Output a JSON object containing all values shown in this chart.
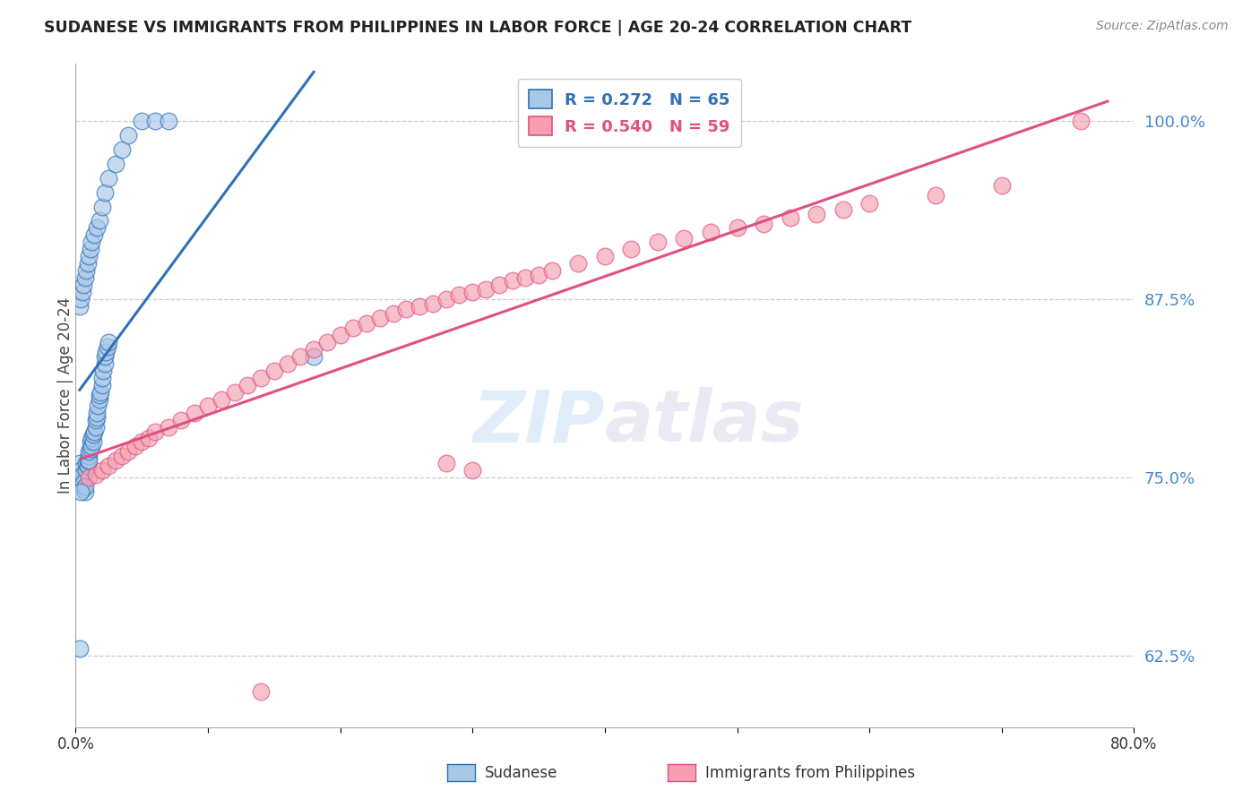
{
  "title": "SUDANESE VS IMMIGRANTS FROM PHILIPPINES IN LABOR FORCE | AGE 20-24 CORRELATION CHART",
  "source": "Source: ZipAtlas.com",
  "ylabel": "In Labor Force | Age 20-24",
  "xmin": 0.0,
  "xmax": 0.8,
  "ymin": 0.575,
  "ymax": 1.04,
  "yticks": [
    0.625,
    0.75,
    0.875,
    1.0
  ],
  "ytick_labels": [
    "62.5%",
    "75.0%",
    "87.5%",
    "100.0%"
  ],
  "xticks": [
    0.0,
    0.1,
    0.2,
    0.3,
    0.4,
    0.5,
    0.6,
    0.7,
    0.8
  ],
  "xtick_labels": [
    "0.0%",
    "",
    "",
    "",
    "",
    "",
    "",
    "",
    "80.0%"
  ],
  "blue_color": "#a8c8e8",
  "pink_color": "#f4a0b0",
  "blue_line_color": "#3070b8",
  "pink_line_color": "#e05080",
  "R_blue": 0.272,
  "N_blue": 65,
  "R_pink": 0.54,
  "N_pink": 59,
  "legend_label_blue": "Sudanese",
  "legend_label_pink": "Immigrants from Philippines",
  "watermark_zip": "ZIP",
  "watermark_atlas": "atlas",
  "blue_x": [
    0.003,
    0.004,
    0.004,
    0.005,
    0.005,
    0.005,
    0.006,
    0.006,
    0.007,
    0.007,
    0.008,
    0.008,
    0.009,
    0.009,
    0.01,
    0.01,
    0.01,
    0.011,
    0.011,
    0.012,
    0.012,
    0.013,
    0.013,
    0.014,
    0.015,
    0.015,
    0.016,
    0.016,
    0.017,
    0.018,
    0.018,
    0.019,
    0.02,
    0.02,
    0.021,
    0.022,
    0.022,
    0.023,
    0.024,
    0.025,
    0.003,
    0.004,
    0.005,
    0.006,
    0.007,
    0.008,
    0.009,
    0.01,
    0.011,
    0.012,
    0.014,
    0.016,
    0.018,
    0.02,
    0.022,
    0.025,
    0.03,
    0.035,
    0.04,
    0.05,
    0.06,
    0.07,
    0.18,
    0.003,
    0.004
  ],
  "blue_y": [
    0.76,
    0.75,
    0.755,
    0.745,
    0.748,
    0.752,
    0.742,
    0.746,
    0.74,
    0.744,
    0.755,
    0.76,
    0.758,
    0.762,
    0.765,
    0.762,
    0.768,
    0.77,
    0.775,
    0.772,
    0.778,
    0.775,
    0.78,
    0.782,
    0.785,
    0.79,
    0.792,
    0.795,
    0.8,
    0.805,
    0.808,
    0.81,
    0.815,
    0.82,
    0.825,
    0.83,
    0.835,
    0.838,
    0.842,
    0.845,
    0.87,
    0.875,
    0.88,
    0.885,
    0.89,
    0.895,
    0.9,
    0.905,
    0.91,
    0.915,
    0.92,
    0.925,
    0.93,
    0.94,
    0.95,
    0.96,
    0.97,
    0.98,
    0.99,
    1.0,
    1.0,
    1.0,
    0.835,
    0.63,
    0.74
  ],
  "pink_x": [
    0.01,
    0.015,
    0.02,
    0.025,
    0.03,
    0.035,
    0.04,
    0.045,
    0.05,
    0.055,
    0.06,
    0.07,
    0.08,
    0.09,
    0.1,
    0.11,
    0.12,
    0.13,
    0.14,
    0.15,
    0.16,
    0.17,
    0.18,
    0.19,
    0.2,
    0.21,
    0.22,
    0.23,
    0.24,
    0.25,
    0.26,
    0.27,
    0.28,
    0.29,
    0.3,
    0.31,
    0.32,
    0.33,
    0.34,
    0.35,
    0.36,
    0.38,
    0.4,
    0.42,
    0.44,
    0.46,
    0.48,
    0.5,
    0.52,
    0.54,
    0.56,
    0.58,
    0.6,
    0.65,
    0.7,
    0.28,
    0.3,
    0.76,
    0.14
  ],
  "pink_y": [
    0.75,
    0.752,
    0.755,
    0.758,
    0.762,
    0.765,
    0.768,
    0.772,
    0.775,
    0.778,
    0.782,
    0.785,
    0.79,
    0.795,
    0.8,
    0.805,
    0.81,
    0.815,
    0.82,
    0.825,
    0.83,
    0.835,
    0.84,
    0.845,
    0.85,
    0.855,
    0.858,
    0.862,
    0.865,
    0.868,
    0.87,
    0.872,
    0.875,
    0.878,
    0.88,
    0.882,
    0.885,
    0.888,
    0.89,
    0.892,
    0.895,
    0.9,
    0.905,
    0.91,
    0.915,
    0.918,
    0.922,
    0.925,
    0.928,
    0.932,
    0.935,
    0.938,
    0.942,
    0.948,
    0.955,
    0.76,
    0.755,
    1.0,
    0.6
  ]
}
